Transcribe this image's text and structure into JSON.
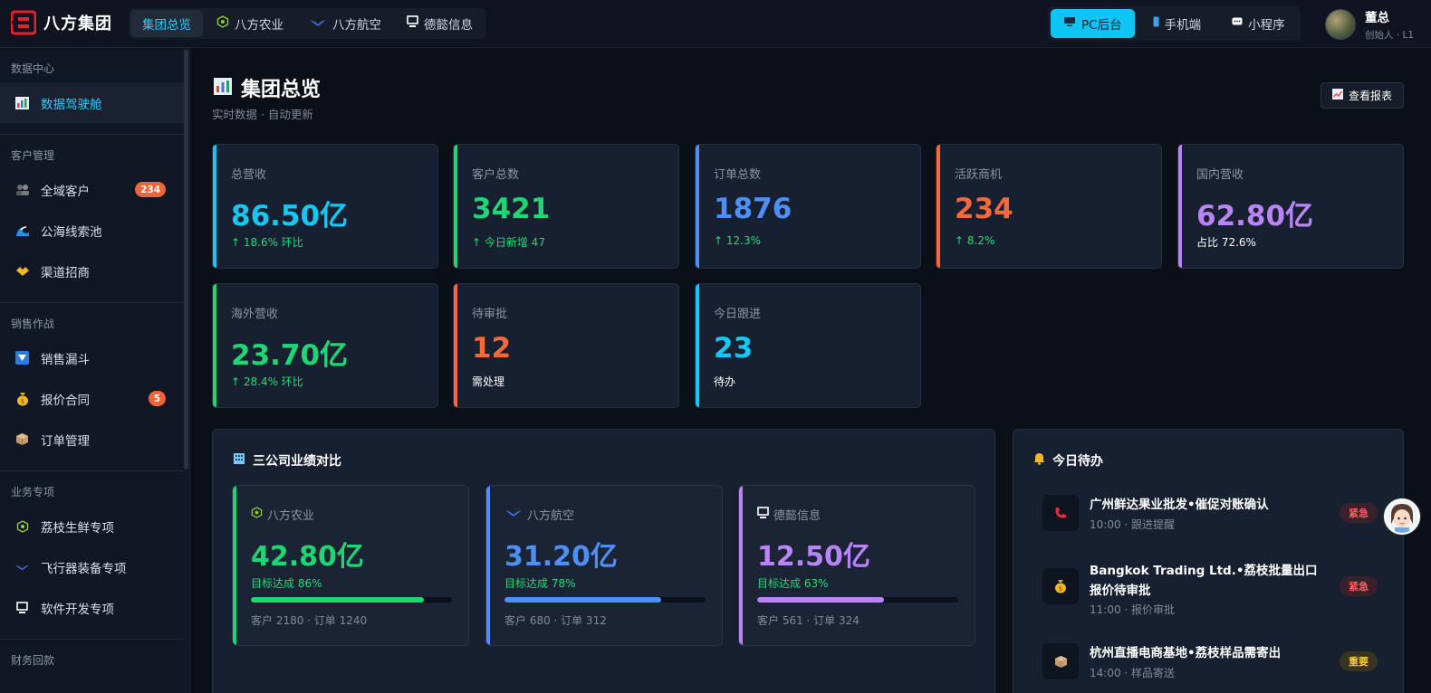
{
  "brand": {
    "name": "八方集团"
  },
  "header": {
    "tabs": [
      {
        "label": "集团总览",
        "icon": "",
        "active": true
      },
      {
        "label": "八方农业",
        "icon": "leaf-badge-icon"
      },
      {
        "label": "八方航空",
        "icon": "wings-icon"
      },
      {
        "label": "德懿信息",
        "icon": "monitor-icon"
      }
    ],
    "platforms": [
      {
        "label": "PC后台",
        "icon": "desktop-icon",
        "active": true
      },
      {
        "label": "手机端",
        "icon": "phone-icon"
      },
      {
        "label": "小程序",
        "icon": "chat-icon"
      }
    ],
    "user": {
      "name": "董总",
      "role": "创始人 · L1"
    }
  },
  "sidebar": {
    "groups": [
      {
        "title": "数据中心",
        "items": [
          {
            "label": "数据驾驶舱",
            "icon": "bar-chart-icon",
            "active": true
          }
        ]
      },
      {
        "title": "客户管理",
        "items": [
          {
            "label": "全域客户",
            "icon": "users-icon",
            "badge": "234"
          },
          {
            "label": "公海线索池",
            "icon": "wave-icon"
          },
          {
            "label": "渠道招商",
            "icon": "handshake-icon"
          }
        ]
      },
      {
        "title": "销售作战",
        "items": [
          {
            "label": "销售漏斗",
            "icon": "funnel-icon"
          },
          {
            "label": "报价合同",
            "icon": "money-bag-icon",
            "badge": "5"
          },
          {
            "label": "订单管理",
            "icon": "package-icon"
          }
        ]
      },
      {
        "title": "业务专项",
        "items": [
          {
            "label": "荔枝生鲜专项",
            "icon": "leaf-badge-icon"
          },
          {
            "label": "飞行器装备专项",
            "icon": "wings-icon"
          },
          {
            "label": "软件开发专项",
            "icon": "monitor-icon"
          }
        ]
      },
      {
        "title": "财务回款",
        "items": []
      }
    ]
  },
  "page": {
    "icon": "bar-chart-icon",
    "title": "集团总览",
    "subtitle": "实时数据 · 自动更新",
    "report_button": "查看报表"
  },
  "kpis": [
    {
      "label": "总营收",
      "value": "86.50亿",
      "sub": "↑ 18.6% 环比",
      "color": "#14c8f5",
      "sub_color": "#22d97a"
    },
    {
      "label": "客户总数",
      "value": "3421",
      "sub": "↑ 今日新增 47",
      "color": "#1ed673",
      "sub_color": "#22d97a"
    },
    {
      "label": "订单总数",
      "value": "1876",
      "sub": "↑ 12.3%",
      "color": "#4d8ff5",
      "sub_color": "#22d97a"
    },
    {
      "label": "活跃商机",
      "value": "234",
      "sub": "↑ 8.2%",
      "color": "#f5683a",
      "sub_color": "#22d97a"
    },
    {
      "label": "国内营收",
      "value": "62.80亿",
      "sub": "占比 72.6%",
      "color": "#b884f8",
      "sub_color": "#ffffff"
    },
    {
      "label": "海外营收",
      "value": "23.70亿",
      "sub": "↑ 28.4% 环比",
      "color": "#1ed673",
      "sub_color": "#22d97a"
    },
    {
      "label": "待审批",
      "value": "12",
      "sub": "需处理",
      "color": "#f5683a",
      "sub_color": "#ffffff"
    },
    {
      "label": "今日跟进",
      "value": "23",
      "sub": "待办",
      "color": "#14c8f5",
      "sub_color": "#ffffff"
    }
  ],
  "comparison": {
    "icon": "building-icon",
    "title": "三公司业绩对比",
    "companies": [
      {
        "name": "八方农业",
        "icon": "leaf-badge-icon",
        "value": "42.80亿",
        "goal": "目标达成 86%",
        "progress": 0.86,
        "meta": "客户 2180 · 订单 1240",
        "color": "#1ed673"
      },
      {
        "name": "八方航空",
        "icon": "wings-icon",
        "value": "31.20亿",
        "goal": "目标达成 78%",
        "progress": 0.78,
        "meta": "客户 680 · 订单 312",
        "color": "#4d8ff5"
      },
      {
        "name": "德懿信息",
        "icon": "monitor-icon",
        "value": "12.50亿",
        "goal": "目标达成 63%",
        "progress": 0.63,
        "meta": "客户 561 · 订单 324",
        "color": "#b884f8"
      }
    ]
  },
  "todos": {
    "icon": "bell-icon",
    "title": "今日待办",
    "items": [
      {
        "title": "广州鲜达果业批发•催促对账确认",
        "meta": "10:00 · 跟进提醒",
        "tag": "紧急",
        "tag_type": "urgent",
        "icon": "phone-call-icon"
      },
      {
        "title": "Bangkok Trading Ltd.•荔枝批量出口报价待审批",
        "meta": "11:00 · 报价审批",
        "tag": "紧急",
        "tag_type": "urgent",
        "icon": "money-bag-icon"
      },
      {
        "title": "杭州直播电商基地•荔枝样品需寄出",
        "meta": "14:00 · 样品寄送",
        "tag": "重要",
        "tag_type": "important",
        "icon": "package-icon"
      }
    ]
  }
}
